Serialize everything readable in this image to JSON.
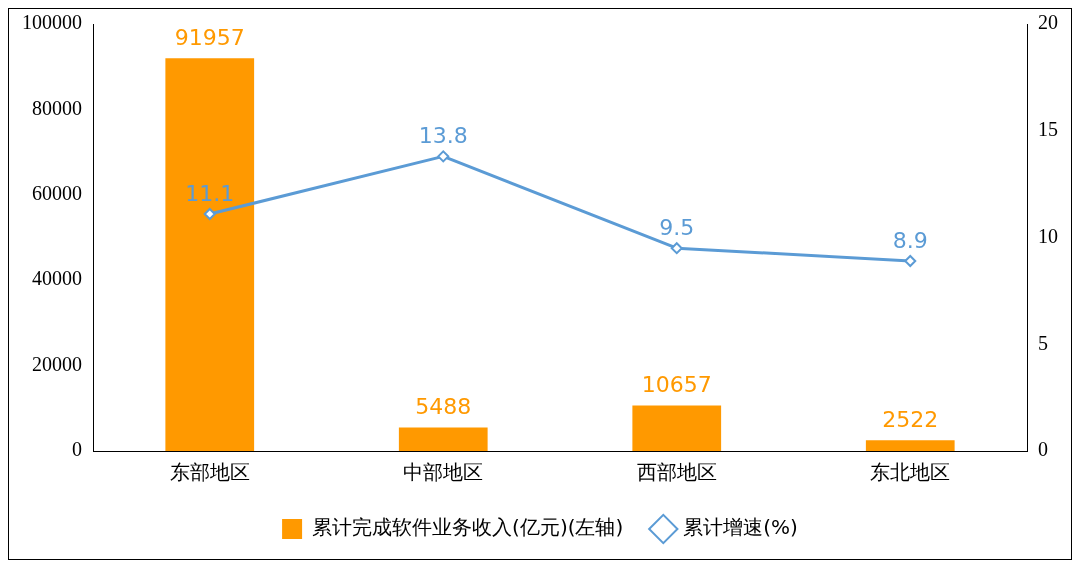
{
  "chart_data": {
    "type": "bar",
    "categories": [
      "东部地区",
      "中部地区",
      "西部地区",
      "东北地区"
    ],
    "series": [
      {
        "name": "累计完成软件业务收入(亿元)(左轴)",
        "color": "#ff9900",
        "values": [
          91957,
          5488,
          10657,
          2522
        ]
      },
      {
        "name": "累计增速(%)",
        "type": "line",
        "axis": "y2",
        "color": "#5b9bd5",
        "values": [
          11.1,
          13.8,
          9.5,
          8.9
        ]
      }
    ],
    "ylim": [
      0,
      100000
    ],
    "yticks": [
      0,
      20000,
      40000,
      60000,
      80000,
      100000
    ],
    "y2lim": [
      0,
      20
    ],
    "y2ticks": [
      0,
      5,
      10,
      15,
      20
    ],
    "data_labels": true,
    "legend": "bottom",
    "grid": false,
    "marker": "diamond",
    "line_style": "solid"
  }
}
